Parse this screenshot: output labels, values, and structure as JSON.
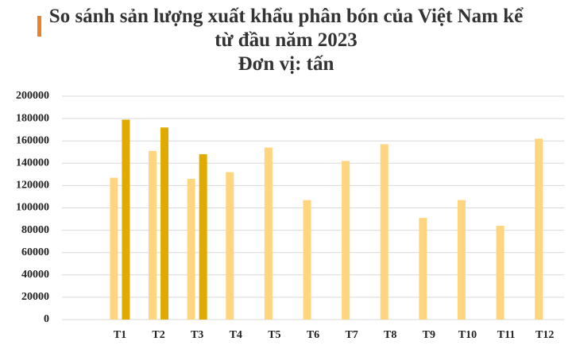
{
  "chart_data": {
    "type": "bar",
    "title": "So sánh sản lượng xuất khẩu phân bón của Việt Nam kể từ đầu năm 2023",
    "subtitle": "Đơn vị: tấn",
    "categories": [
      null,
      "T1",
      "T2",
      "T3",
      "T4",
      "T5",
      "T6",
      "T7",
      "T8",
      "T9",
      "T10",
      "T11",
      "T12"
    ],
    "series": [
      {
        "color": "#ffd580",
        "values": [
          null,
          127000,
          151000,
          126000,
          132000,
          154000,
          107000,
          142000,
          157000,
          91000,
          107000,
          84000,
          162000
        ]
      },
      {
        "color": "#e0aa00",
        "values": [
          null,
          179000,
          172000,
          148000,
          null,
          null,
          null,
          null,
          null,
          null,
          null,
          null,
          null
        ]
      }
    ],
    "ylim": [
      0,
      200000
    ],
    "yticks": [
      0,
      20000,
      40000,
      60000,
      80000,
      100000,
      120000,
      140000,
      160000,
      180000,
      200000
    ],
    "grid": true
  }
}
